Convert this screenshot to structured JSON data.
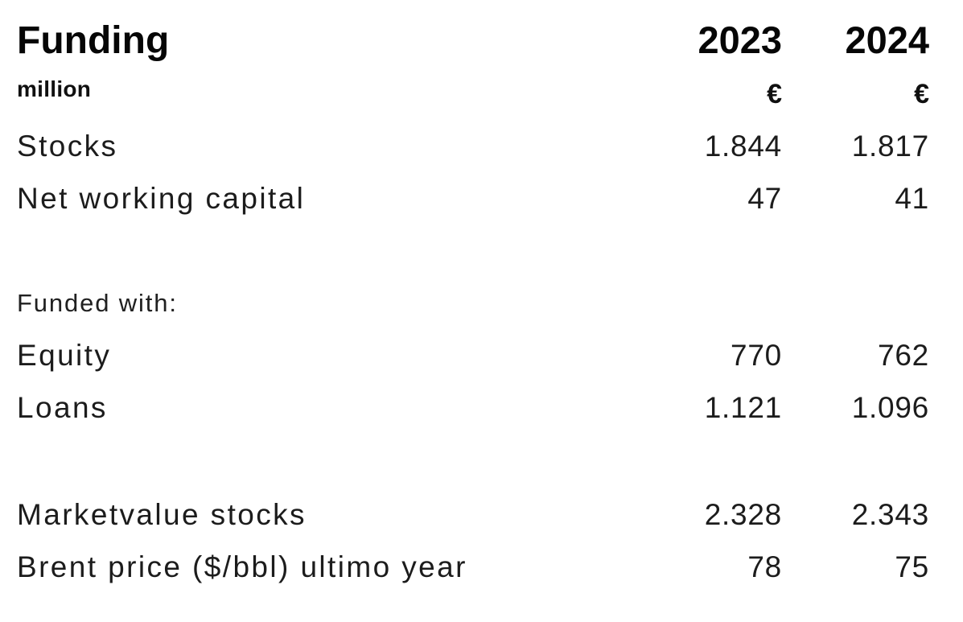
{
  "page": {
    "background_color": "#ffffff",
    "text_color": "#1c1c1c",
    "heading_color": "#060606"
  },
  "header": {
    "title": "Funding",
    "unit": "million",
    "columns": [
      {
        "year": "2023",
        "currency": "€"
      },
      {
        "year": "2024",
        "currency": "€"
      }
    ]
  },
  "table": {
    "rows": [
      {
        "label": "Stocks",
        "values": [
          "1.844",
          "1.817"
        ]
      },
      {
        "label": "Net working capital",
        "values": [
          "47",
          "41"
        ]
      },
      {
        "label": "Funded with:",
        "values": [
          "",
          ""
        ],
        "style": "subheading"
      },
      {
        "label": "Equity",
        "values": [
          "770",
          "762"
        ]
      },
      {
        "label": "Loans",
        "values": [
          "1.121",
          "1.096"
        ]
      },
      {
        "label": "Marketvalue stocks",
        "values": [
          "2.328",
          "2.343"
        ]
      },
      {
        "label": "Brent price ($/bbl) ultimo year",
        "values": [
          "78",
          "75"
        ]
      }
    ]
  }
}
